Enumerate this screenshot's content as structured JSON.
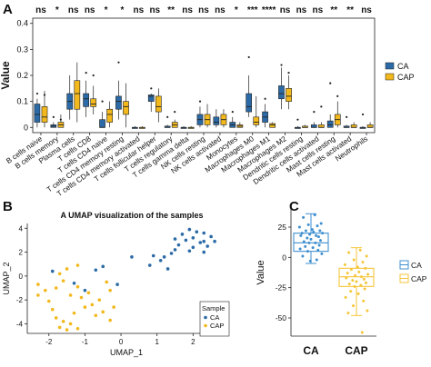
{
  "panels": {
    "a": {
      "letter": "A"
    },
    "b": {
      "letter": "B"
    },
    "c": {
      "letter": "C"
    }
  },
  "colors": {
    "ca": "#2b6aa6",
    "cap": "#f2b81c",
    "ca_light": "#3f8fd0",
    "cap_light": "#f5c63a"
  },
  "chart_data": [
    {
      "type": "box",
      "ylabel": "Value",
      "yticks": [
        0,
        0.1,
        0.2,
        0.3,
        0.4
      ],
      "ylim": [
        -0.02,
        0.42
      ],
      "legend": {
        "placement": "right",
        "entries": [
          "CA",
          "CAP"
        ]
      },
      "categories": [
        "B cells naive",
        "B cells memory",
        "Plasma cells",
        "T cells CD8",
        "T cells CD4 naive",
        "T cells CD4 memory resting",
        "T cells CD4 memory activated",
        "T cells follicular helper",
        "T cells regulatory",
        "T cells gamma delta",
        "NK cells resting",
        "NK cells activated",
        "Monocytes",
        "Macrophages M0",
        "Macrophages M1",
        "Macrophages M2",
        "Dendritic cells resting",
        "Dendritic cells activated",
        "Mast cells resting",
        "Mast cells activated",
        "Neutrophils"
      ],
      "significance": [
        "ns",
        "*",
        "ns",
        "ns",
        "*",
        "*",
        "ns",
        "ns",
        "**",
        "ns",
        "ns",
        "ns",
        "*",
        "***",
        "****",
        "ns",
        "ns",
        "ns",
        "**",
        "**",
        "ns"
      ],
      "series": [
        {
          "name": "CA",
          "boxes": [
            [
              0,
              0.02,
              0.05,
              0.09,
              0.11
            ],
            [
              0,
              0,
              0.005,
              0.01,
              0.02
            ],
            [
              0.03,
              0.07,
              0.1,
              0.13,
              0.2
            ],
            [
              0.04,
              0.08,
              0.11,
              0.13,
              0.18
            ],
            [
              0,
              0,
              0,
              0.03,
              0.06
            ],
            [
              0.03,
              0.07,
              0.1,
              0.12,
              0.18
            ],
            [
              0,
              0,
              0,
              0,
              0.005
            ],
            [
              0.06,
              0.1,
              0.12,
              0.125,
              0.13
            ],
            [
              0,
              0,
              0,
              0.005,
              0.01
            ],
            [
              0,
              0,
              0,
              0,
              0.005
            ],
            [
              0,
              0.01,
              0.03,
              0.05,
              0.08
            ],
            [
              0,
              0.01,
              0.02,
              0.04,
              0.07
            ],
            [
              0,
              0,
              0.01,
              0.02,
              0.04
            ],
            [
              0.04,
              0.06,
              0.08,
              0.13,
              0.2
            ],
            [
              0,
              0.02,
              0.04,
              0.06,
              0.09
            ],
            [
              0.07,
              0.11,
              0.13,
              0.16,
              0.23
            ],
            [
              0,
              0,
              0,
              0,
              0.005
            ],
            [
              0,
              0,
              0,
              0.01,
              0.02
            ],
            [
              0,
              0,
              0.01,
              0.025,
              0.05
            ],
            [
              0,
              0,
              0,
              0.005,
              0.01
            ],
            [
              0,
              0,
              0,
              0,
              0.005
            ]
          ]
        },
        {
          "name": "CAP",
          "boxes": [
            [
              0,
              0.02,
              0.04,
              0.08,
              0.14
            ],
            [
              0,
              0,
              0.01,
              0.02,
              0.05
            ],
            [
              0.02,
              0.07,
              0.13,
              0.18,
              0.25
            ],
            [
              0.05,
              0.08,
              0.09,
              0.11,
              0.16
            ],
            [
              0,
              0.02,
              0.05,
              0.07,
              0.1
            ],
            [
              0,
              0.05,
              0.08,
              0.1,
              0.17
            ],
            [
              0,
              0,
              0,
              0,
              0.005
            ],
            [
              0.02,
              0.06,
              0.08,
              0.12,
              0.15
            ],
            [
              0,
              0,
              0.01,
              0.02,
              0.03
            ],
            [
              0,
              0,
              0,
              0,
              0.005
            ],
            [
              0,
              0.01,
              0.03,
              0.05,
              0.09
            ],
            [
              0,
              0.01,
              0.03,
              0.05,
              0.07
            ],
            [
              0,
              0,
              0.005,
              0.01,
              0.02
            ],
            [
              0,
              0.01,
              0.02,
              0.04,
              0.12
            ],
            [
              0,
              0,
              0.01,
              0.015,
              0.02
            ],
            [
              0.07,
              0.1,
              0.12,
              0.15,
              0.2
            ],
            [
              0,
              0,
              0,
              0.005,
              0.01
            ],
            [
              0,
              0,
              0,
              0.01,
              0.02
            ],
            [
              0,
              0.01,
              0.03,
              0.05,
              0.1
            ],
            [
              0,
              0,
              0,
              0.01,
              0.02
            ],
            [
              0,
              0,
              0,
              0.01,
              0.02
            ]
          ]
        }
      ],
      "outliers": [
        [
          0.13,
          0.125
        ],
        [
          0.04,
          0.03
        ],
        [],
        [
          0.21,
          0.2
        ],
        [
          0.1
        ],
        [
          0.25
        ],
        [],
        [
          0.15
        ],
        [
          0.04,
          0.06
        ],
        [],
        [
          0.1
        ],
        [],
        [
          0.06
        ],
        [
          0.27
        ],
        [
          0.11
        ],
        [
          0.24,
          0.21
        ],
        [
          0.03
        ],
        [
          0.06,
          0.08
        ],
        [
          0.17,
          0.12
        ],
        [
          0.04
        ],
        [
          0.05
        ]
      ]
    },
    {
      "type": "scatter",
      "title": "A UMAP visualization of the samples",
      "xlabel": "UMAP_1",
      "ylabel": "UMAP_2",
      "xticks": [
        -2,
        -1,
        0,
        1,
        2
      ],
      "yticks": [
        -4,
        -2,
        0,
        2,
        4
      ],
      "xlim": [
        -2.6,
        2.9
      ],
      "ylim": [
        -4.8,
        4.4
      ],
      "legend": {
        "title": "Sample",
        "placement": "right",
        "entries": [
          "CA",
          "CAP"
        ]
      },
      "series": [
        {
          "name": "CA",
          "points": [
            [
              1.9,
              3.9
            ],
            [
              2.1,
              3.7
            ],
            [
              2.3,
              3.6
            ],
            [
              1.7,
              3.5
            ],
            [
              2.0,
              3.2
            ],
            [
              2.5,
              3.3
            ],
            [
              1.8,
              3.0
            ],
            [
              2.2,
              2.8
            ],
            [
              1.6,
              2.6
            ],
            [
              2.4,
              2.5
            ],
            [
              2.0,
              2.4
            ],
            [
              2.6,
              2.9
            ],
            [
              1.5,
              2.2
            ],
            [
              1.9,
              2.1
            ],
            [
              2.3,
              2.0
            ],
            [
              1.4,
              1.9
            ],
            [
              1.2,
              1.6
            ],
            [
              0.9,
              1.7
            ],
            [
              1.1,
              1.3
            ],
            [
              0.3,
              1.6
            ],
            [
              0.8,
              0.9
            ],
            [
              1.3,
              0.6
            ],
            [
              -0.5,
              0.8
            ],
            [
              -0.7,
              0.5
            ],
            [
              -1.9,
              0.4
            ],
            [
              -1.3,
              -0.6
            ],
            [
              -0.1,
              -0.7
            ],
            [
              -1.0,
              -1.2
            ],
            [
              2.3,
              2.9
            ],
            [
              1.5,
              3.1
            ]
          ]
        },
        {
          "name": "CAP",
          "points": [
            [
              -1.2,
              0.9
            ],
            [
              -1.5,
              0.6
            ],
            [
              -1.7,
              0.2
            ],
            [
              -2.3,
              -0.7
            ],
            [
              -2.1,
              -1.2
            ],
            [
              -1.8,
              -1.0
            ],
            [
              -1.6,
              -0.4
            ],
            [
              -1.4,
              -1.6
            ],
            [
              -1.2,
              -0.9
            ],
            [
              -1.1,
              -1.8
            ],
            [
              -0.9,
              -1.4
            ],
            [
              -0.8,
              -2.4
            ],
            [
              -0.6,
              -2.0
            ],
            [
              -0.3,
              -1.2
            ],
            [
              -0.5,
              -3.0
            ],
            [
              -0.3,
              -3.7
            ],
            [
              -1.8,
              -3.5
            ],
            [
              -1.6,
              -3.8
            ],
            [
              -1.4,
              -4.0
            ],
            [
              -1.7,
              -4.3
            ],
            [
              -1.5,
              -4.5
            ],
            [
              -1.2,
              -4.4
            ],
            [
              -2.3,
              -1.6
            ],
            [
              -2.0,
              -2.1
            ],
            [
              -1.9,
              -2.8
            ],
            [
              -1.0,
              -2.6
            ],
            [
              -0.7,
              -3.3
            ],
            [
              -1.3,
              -3.1
            ],
            [
              -0.4,
              -0.5
            ],
            [
              -0.2,
              -2.6
            ]
          ]
        }
      ]
    },
    {
      "type": "box",
      "ylabel": "Value",
      "categories": [
        "CA",
        "CAP"
      ],
      "yticks": [
        25,
        0,
        -25,
        -50
      ],
      "ylim": [
        -65,
        40
      ],
      "legend": {
        "placement": "right",
        "entries": [
          "CA",
          "CAP"
        ]
      },
      "series": [
        {
          "name": "CA",
          "box": [
            -5,
            5,
            12,
            20,
            36
          ],
          "points": [
            35,
            33,
            28,
            27,
            26,
            25,
            23,
            22,
            22,
            21,
            20,
            20,
            19,
            18,
            18,
            17,
            16,
            15,
            14,
            13,
            12,
            12,
            10,
            9,
            8,
            7,
            6,
            5,
            3,
            1,
            -2,
            -3
          ]
        },
        {
          "name": "CAP",
          "box": [
            -48,
            -24,
            -16,
            -9,
            8
          ],
          "points": [
            6,
            4,
            1,
            -2,
            -4,
            -6,
            -8,
            -9,
            -10,
            -12,
            -13,
            -14,
            -15,
            -16,
            -17,
            -18,
            -19,
            -20,
            -21,
            -22,
            -23,
            -24,
            -26,
            -28,
            -30,
            -33,
            -36,
            -40,
            -44,
            -46,
            -62
          ]
        }
      ]
    }
  ]
}
